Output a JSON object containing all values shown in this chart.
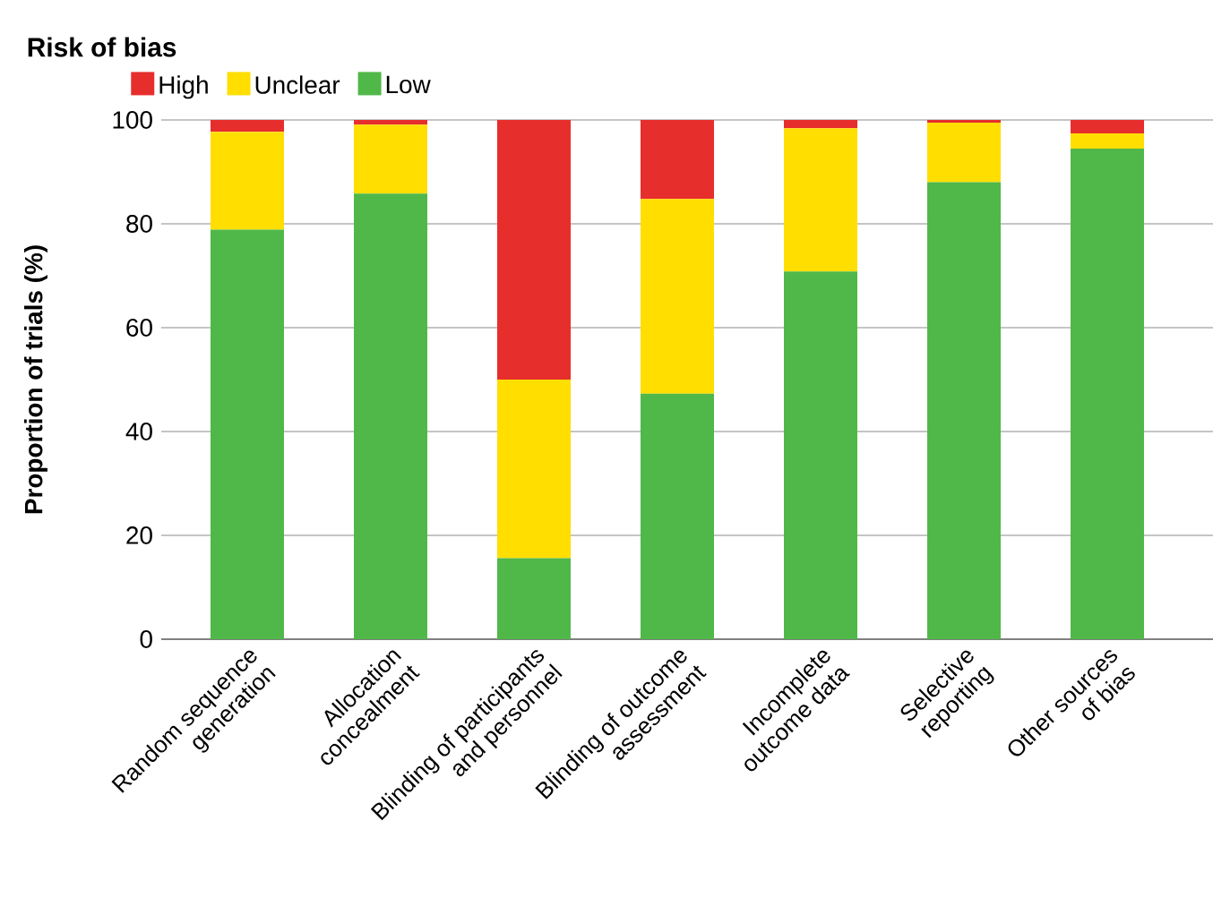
{
  "chart_data": {
    "type": "bar",
    "stacked": true,
    "ylabel": "Proportion of trials (%)",
    "legend_title": "Risk of bias",
    "legend": "top left",
    "grid": "y",
    "categories": [
      "Random sequence generation",
      "Allocation concealment",
      "Blinding of participants and personnel",
      "Blinding of outcome assessment",
      "Incomplete outcome data",
      "Selective reporting",
      "Other sources of bias"
    ],
    "ylim": [
      0,
      100
    ],
    "yticks": [
      0,
      20,
      40,
      60,
      80,
      100
    ],
    "series": [
      {
        "name": "Low",
        "color": "#50b848",
        "values": [
          78.9,
          85.8,
          15.6,
          47.3,
          70.8,
          88,
          94.5
        ]
      },
      {
        "name": "Unclear",
        "color": "#ffde00",
        "values": [
          18.8,
          13.3,
          34.4,
          37.5,
          27.6,
          11.5,
          2.9
        ]
      },
      {
        "name": "High",
        "color": "#e62e2d",
        "values": [
          2.3,
          0.9,
          50,
          15.2,
          1.6,
          0.5,
          2.6
        ]
      }
    ]
  }
}
